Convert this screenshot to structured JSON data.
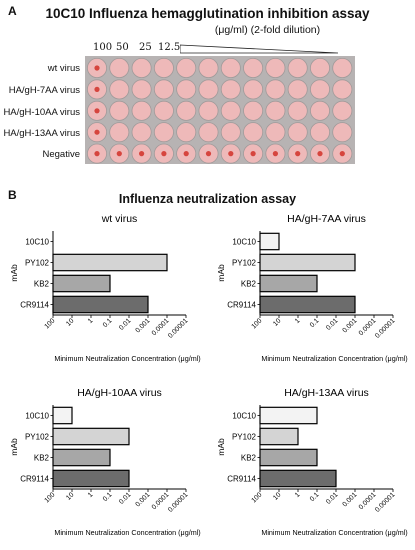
{
  "panel_a": {
    "label": "A",
    "title": "10C10 Influenza hemagglutination inhibition assay",
    "subtitle": "(μg/ml) (2-fold dilution)",
    "dilutions": [
      "100",
      "50",
      "25",
      "12.5"
    ],
    "rows": [
      "wt virus",
      "HA/gH-7AA virus",
      "HA/gH-10AA virus",
      "HA/gH-13AA virus",
      "Negative"
    ],
    "colors": {
      "plate": "#b7b3b3",
      "well": "#eeb9b9",
      "button": "#d6453e"
    }
  },
  "panel_b": {
    "label": "B",
    "title": "Influenza neutralization assay"
  },
  "chart_data": [
    {
      "type": "bar",
      "orientation": "horizontal",
      "title": "wt virus",
      "ylabel": "mAb",
      "xlabel": "Minimum Neutralization Concentration (μg/ml)",
      "x_scale": "log-reversed",
      "xlim": [
        100,
        1e-05
      ],
      "x_ticks": [
        "100",
        "10",
        "1",
        "0.1",
        "0.01",
        "0.001",
        "0.0001",
        "0.00001"
      ],
      "categories": [
        "10C10",
        "PY102",
        "KB2",
        "CR9114"
      ],
      "values": [
        null,
        0.0001,
        0.1,
        0.001
      ],
      "colors": [
        "#f3f3f3",
        "#d4d4d4",
        "#a7a7a7",
        "#6c6c6c"
      ]
    },
    {
      "type": "bar",
      "orientation": "horizontal",
      "title": "HA/gH-7AA virus",
      "ylabel": "mAb",
      "xlabel": "Minimum Neutralization Concentration (μg/ml)",
      "x_scale": "log-reversed",
      "xlim": [
        100,
        1e-05
      ],
      "x_ticks": [
        "100",
        "10",
        "1",
        "0.1",
        "0.01",
        "0.001",
        "0.0001",
        "0.00001"
      ],
      "categories": [
        "10C10",
        "PY102",
        "KB2",
        "CR9114"
      ],
      "values": [
        10,
        0.001,
        0.1,
        0.001
      ],
      "colors": [
        "#f3f3f3",
        "#d4d4d4",
        "#a7a7a7",
        "#6c6c6c"
      ]
    },
    {
      "type": "bar",
      "orientation": "horizontal",
      "title": "HA/gH-10AA virus",
      "ylabel": "mAb",
      "xlabel": "Minimum Neutralization Concentration (μg/ml)",
      "x_scale": "log-reversed",
      "xlim": [
        100,
        1e-05
      ],
      "x_ticks": [
        "100",
        "10",
        "1",
        "0.1",
        "0.01",
        "0.001",
        "0.0001",
        "0.00001"
      ],
      "categories": [
        "10C10",
        "PY102",
        "KB2",
        "CR9114"
      ],
      "values": [
        10,
        0.01,
        0.1,
        0.01
      ],
      "colors": [
        "#f3f3f3",
        "#d4d4d4",
        "#a7a7a7",
        "#6c6c6c"
      ]
    },
    {
      "type": "bar",
      "orientation": "horizontal",
      "title": "HA/gH-13AA virus",
      "ylabel": "mAb",
      "xlabel": "Minimum Neutralization Concentration (μg/ml)",
      "x_scale": "log-reversed",
      "xlim": [
        100,
        1e-05
      ],
      "x_ticks": [
        "100",
        "10",
        "1",
        "0.1",
        "0.01",
        "0.001",
        "0.0001",
        "0.00001"
      ],
      "categories": [
        "10C10",
        "PY102",
        "KB2",
        "CR9114"
      ],
      "values": [
        0.1,
        1,
        0.1,
        0.01
      ],
      "colors": [
        "#f3f3f3",
        "#d4d4d4",
        "#a7a7a7",
        "#6c6c6c"
      ]
    }
  ]
}
